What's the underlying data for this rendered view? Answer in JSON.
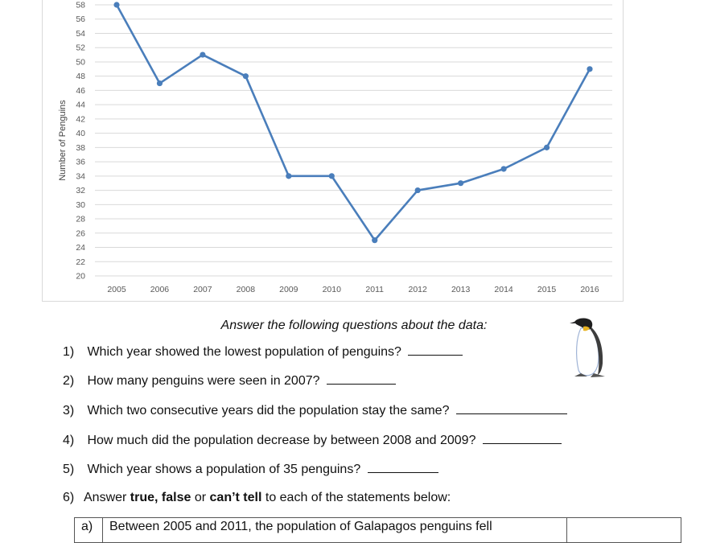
{
  "chart_data": {
    "type": "line",
    "title": "",
    "xlabel": "",
    "ylabel": "Number of Penguins",
    "categories": [
      "2005",
      "2006",
      "2007",
      "2008",
      "2009",
      "2010",
      "2011",
      "2012",
      "2013",
      "2014",
      "2015",
      "2016"
    ],
    "series": [
      {
        "name": "Galapagos penguins",
        "values": [
          58,
          47,
          51,
          48,
          34,
          34,
          25,
          32,
          33,
          35,
          38,
          49
        ],
        "color": "#4a7ebb"
      }
    ],
    "y_ticks": [
      20,
      22,
      24,
      26,
      28,
      30,
      32,
      34,
      36,
      38,
      40,
      42,
      44,
      46,
      48,
      50,
      52,
      54,
      56,
      58
    ],
    "ylim": [
      20,
      58
    ],
    "grid": true,
    "legend": "none",
    "markers": true
  },
  "worksheet": {
    "instructions": "Answer the following questions about the data:",
    "questions": [
      {
        "num": "1)",
        "text": "Which year showed the lowest population of penguins?"
      },
      {
        "num": "2)",
        "text": "How many penguins were seen in 2007?"
      },
      {
        "num": "3)",
        "text": "Which two consecutive years did the population stay the same?"
      },
      {
        "num": "4)",
        "text": "How much did the population decrease by between 2008 and 2009?"
      },
      {
        "num": "5)",
        "text": "Which year shows a population of 35 penguins?"
      }
    ],
    "q6": {
      "num": "6)",
      "prefix": "Answer ",
      "bold1": "true, false",
      "mid": " or ",
      "bold2": "can’t tell",
      "suffix": " to each of the statements below:"
    },
    "statements": [
      {
        "label": "a)",
        "text": "Between 2005 and 2011, the population of Galapagos penguins fell",
        "answer": ""
      }
    ],
    "illustration": "penguin-icon"
  }
}
